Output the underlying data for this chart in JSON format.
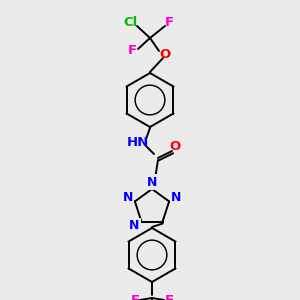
{
  "background_color": "#ebebeb",
  "atom_colors": {
    "N": "#0000FF",
    "O": "#FF0000",
    "F": "#FF00CC",
    "Cl": "#00BB00",
    "C": "#000000"
  },
  "fig_width": 3.0,
  "fig_height": 3.0,
  "dpi": 100,
  "bond_lw": 1.4,
  "font_size": 8.5
}
